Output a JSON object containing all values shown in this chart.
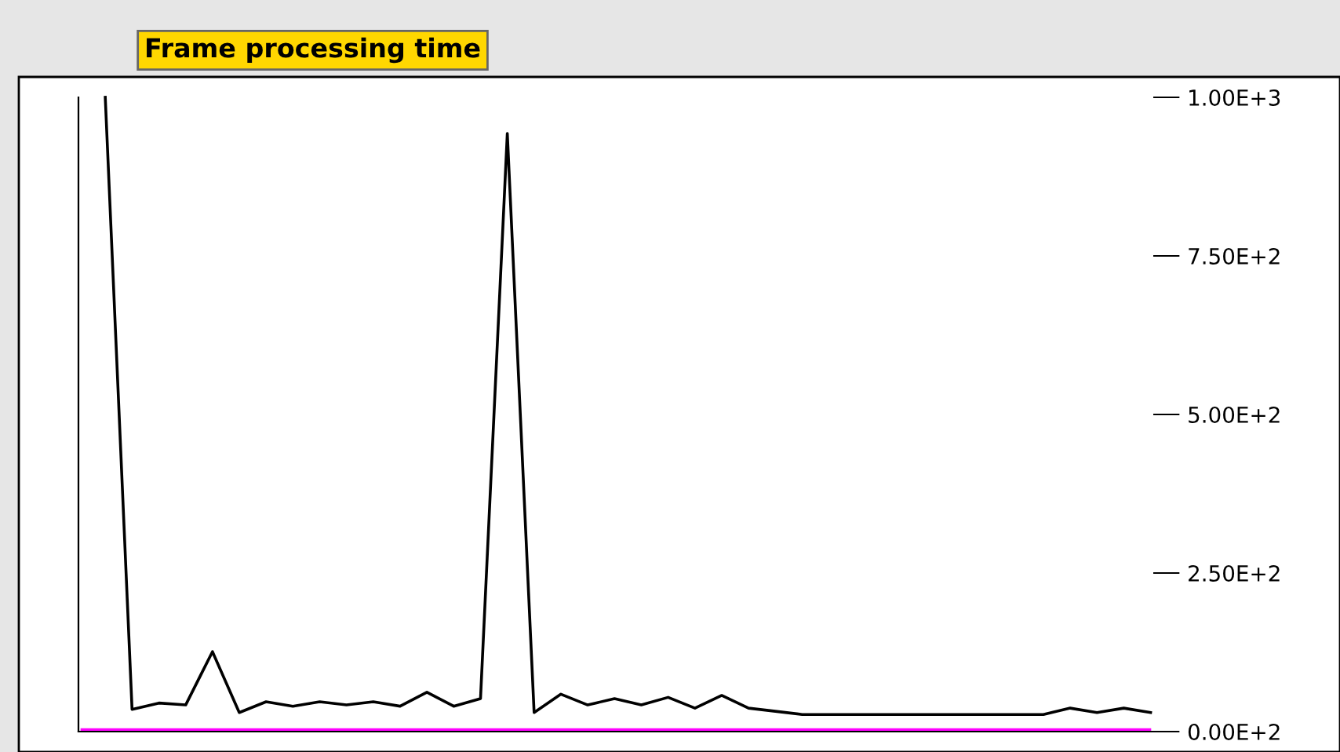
{
  "chart_data": {
    "type": "line",
    "title": "Frame processing time",
    "categories": [
      null,
      null,
      null,
      null,
      null,
      null,
      null,
      null,
      null,
      null,
      null,
      null,
      null,
      null,
      null,
      null,
      null,
      null,
      null,
      null,
      null,
      null,
      null,
      null,
      null,
      null,
      null,
      null,
      null,
      null,
      null,
      null,
      null,
      null,
      null,
      null,
      null,
      null,
      null,
      null
    ],
    "series": [
      {
        "color": "#000000",
        "values": [
          1000,
          35,
          45,
          42,
          126,
          30,
          47,
          40,
          47,
          42,
          47,
          40,
          62,
          40,
          52,
          943,
          30,
          59,
          42,
          52,
          42,
          54,
          37,
          57,
          37,
          32,
          27,
          27,
          27,
          27,
          27,
          27,
          27,
          27,
          27,
          27,
          37,
          30,
          37,
          30
        ]
      }
    ],
    "ylim": [
      0,
      1000
    ],
    "yticks": [
      {
        "value": 0,
        "label": "0.00E+2"
      },
      {
        "value": 250,
        "label": "2.50E+2"
      },
      {
        "value": 500,
        "label": "5.00E+2"
      },
      {
        "value": 750,
        "label": "7.50E+2"
      },
      {
        "value": 1000,
        "label": "1.00E+3"
      }
    ],
    "ref_lines": [
      {
        "axis": "y",
        "value": 0,
        "color": "#ff00ff"
      }
    ],
    "tick_labels": "y",
    "grid": false,
    "legend": false,
    "marker": "none",
    "line_style": "solid"
  }
}
